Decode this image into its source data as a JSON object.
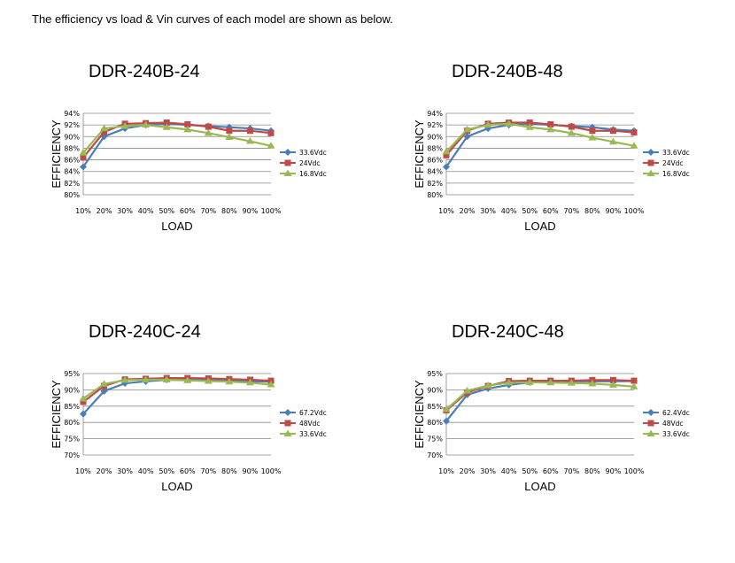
{
  "intro_text": "The efficiency vs load & Vin curves of each model are shown as below.",
  "colors": {
    "series1": "#4A7EBB",
    "series2": "#BE4B48",
    "series3": "#98B954",
    "grid": "#888888"
  },
  "chart_data": [
    {
      "type": "line",
      "title": "DDR-240B-24",
      "xlabel": "LOAD",
      "ylabel": "EFFICIENCY",
      "categories": [
        "10%",
        "20%",
        "30%",
        "40%",
        "50%",
        "60%",
        "70%",
        "80%",
        "90%",
        "100%"
      ],
      "yticks": [
        "80%",
        "82%",
        "84%",
        "86%",
        "88%",
        "90%",
        "92%",
        "94%"
      ],
      "ylim": [
        80,
        94
      ],
      "grid": true,
      "legend_position": "right",
      "series": [
        {
          "name": "33.6Vdc",
          "marker": "diamond",
          "values": [
            84.8,
            90.0,
            91.4,
            92.0,
            92.2,
            92.0,
            91.8,
            91.6,
            91.4,
            91.0
          ]
        },
        {
          "name": "24Vdc",
          "marker": "square",
          "values": [
            86.4,
            90.8,
            92.2,
            92.3,
            92.4,
            92.1,
            91.7,
            91.0,
            91.0,
            90.6
          ]
        },
        {
          "name": "16.8Vdc",
          "marker": "triangle",
          "values": [
            87.2,
            91.4,
            91.8,
            92.0,
            91.6,
            91.2,
            90.6,
            89.9,
            89.2,
            88.4
          ]
        }
      ]
    },
    {
      "type": "line",
      "title": "DDR-240B-48",
      "xlabel": "LOAD",
      "ylabel": "EFFICIENCY",
      "categories": [
        "10%",
        "20%",
        "30%",
        "40%",
        "50%",
        "60%",
        "70%",
        "80%",
        "90%",
        "100%"
      ],
      "yticks": [
        "80%",
        "82%",
        "84%",
        "86%",
        "88%",
        "90%",
        "92%",
        "94%"
      ],
      "ylim": [
        80,
        94
      ],
      "grid": true,
      "legend_position": "right",
      "series": [
        {
          "name": "33.6Vdc",
          "marker": "diamond",
          "values": [
            84.8,
            90.0,
            91.4,
            92.0,
            92.2,
            92.0,
            91.8,
            91.6,
            91.2,
            91.0
          ]
        },
        {
          "name": "24Vdc",
          "marker": "square",
          "values": [
            86.8,
            91.0,
            92.2,
            92.4,
            92.4,
            92.1,
            91.7,
            91.0,
            91.0,
            90.7
          ]
        },
        {
          "name": "16.8Vdc",
          "marker": "triangle",
          "values": [
            87.4,
            91.2,
            92.0,
            92.2,
            91.6,
            91.2,
            90.6,
            89.8,
            89.1,
            88.4
          ]
        }
      ]
    },
    {
      "type": "line",
      "title": "DDR-240C-24",
      "xlabel": "LOAD",
      "ylabel": "EFFICIENCY",
      "categories": [
        "10%",
        "20%",
        "30%",
        "40%",
        "50%",
        "60%",
        "70%",
        "80%",
        "90%",
        "100%"
      ],
      "yticks": [
        "70%",
        "75%",
        "80%",
        "85%",
        "90%",
        "95%"
      ],
      "ylim": [
        70,
        95
      ],
      "grid": true,
      "legend_position": "right",
      "series": [
        {
          "name": "67.2Vdc",
          "marker": "diamond",
          "values": [
            82.6,
            89.6,
            92.0,
            92.6,
            93.1,
            93.1,
            93.0,
            92.9,
            92.6,
            92.5
          ]
        },
        {
          "name": "48Vdc",
          "marker": "square",
          "values": [
            86.3,
            91.2,
            93.2,
            93.4,
            93.6,
            93.6,
            93.5,
            93.3,
            93.1,
            92.8
          ]
        },
        {
          "name": "33.6Vdc",
          "marker": "triangle",
          "values": [
            87.3,
            91.8,
            93.0,
            93.1,
            93.1,
            92.9,
            92.7,
            92.5,
            92.2,
            91.6
          ]
        }
      ]
    },
    {
      "type": "line",
      "title": "DDR-240C-48",
      "xlabel": "LOAD",
      "ylabel": "EFFICIENCY",
      "categories": [
        "10%",
        "20%",
        "30%",
        "40%",
        "50%",
        "60%",
        "70%",
        "80%",
        "90%",
        "100%"
      ],
      "yticks": [
        "70%",
        "75%",
        "80%",
        "85%",
        "90%",
        "95%"
      ],
      "ylim": [
        70,
        95
      ],
      "grid": true,
      "legend_position": "right",
      "series": [
        {
          "name": "62.4Vdc",
          "marker": "diamond",
          "values": [
            80.4,
            88.5,
            90.4,
            91.5,
            92.3,
            92.5,
            92.6,
            92.6,
            92.6,
            92.7
          ]
        },
        {
          "name": "48Vdc",
          "marker": "square",
          "values": [
            83.7,
            89.2,
            91.2,
            92.7,
            92.8,
            92.8,
            92.8,
            93.0,
            93.0,
            92.8
          ]
        },
        {
          "name": "33.6Vdc",
          "marker": "triangle",
          "values": [
            84.0,
            89.7,
            91.3,
            92.2,
            92.3,
            92.2,
            92.1,
            91.9,
            91.5,
            91.0
          ]
        }
      ]
    }
  ]
}
